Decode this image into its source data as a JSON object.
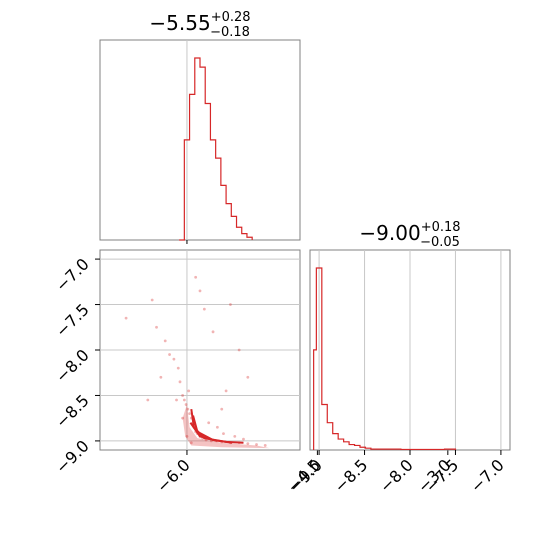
{
  "chart_data": {
    "type": "corner",
    "color": "#d62728",
    "axis_color": "#808080",
    "grid_color": "#c8c8c8",
    "grid": true,
    "params": [
      {
        "title": {
          "main": "−5.55",
          "sup": "+0.28",
          "sub": "−0.18"
        },
        "range": [
          -7.0,
          -4.7
        ],
        "ticks": [
          -6.0,
          -4.5,
          -3.0
        ],
        "tick_labels": [
          "−6.0",
          "−4.5",
          "−3.0"
        ]
      },
      {
        "title": {
          "main": "−9.00",
          "sup": "+0.18",
          "sub": "−0.05"
        },
        "range": [
          -9.1,
          -6.9
        ],
        "ticks": [
          -9.0,
          -8.5,
          -8.0,
          -7.5,
          -7.0
        ],
        "tick_labels": [
          "−9.0",
          "−8.5",
          "−8.0",
          "−7.5",
          "−7.0"
        ]
      }
    ],
    "panels": [
      {
        "name": "hist-param1",
        "type": "step-histogram",
        "bins": [
          {
            "x": -6.09,
            "y": 0.0
          },
          {
            "x": -6.03,
            "y": 0.55
          },
          {
            "x": -5.97,
            "y": 0.8
          },
          {
            "x": -5.91,
            "y": 1.0
          },
          {
            "x": -5.85,
            "y": 0.95
          },
          {
            "x": -5.79,
            "y": 0.75
          },
          {
            "x": -5.73,
            "y": 0.55
          },
          {
            "x": -5.67,
            "y": 0.45
          },
          {
            "x": -5.61,
            "y": 0.3
          },
          {
            "x": -5.55,
            "y": 0.2
          },
          {
            "x": -5.49,
            "y": 0.13
          },
          {
            "x": -5.43,
            "y": 0.07
          },
          {
            "x": -5.37,
            "y": 0.035
          },
          {
            "x": -5.31,
            "y": 0.015
          },
          {
            "x": -5.25,
            "y": 0.0
          }
        ]
      },
      {
        "name": "hist-param2",
        "type": "step-histogram",
        "bins": [
          {
            "x": -9.06,
            "y": 0.55
          },
          {
            "x": -9.03,
            "y": 1.0
          },
          {
            "x": -8.97,
            "y": 0.25
          },
          {
            "x": -8.91,
            "y": 0.15
          },
          {
            "x": -8.85,
            "y": 0.09
          },
          {
            "x": -8.79,
            "y": 0.06
          },
          {
            "x": -8.73,
            "y": 0.045
          },
          {
            "x": -8.67,
            "y": 0.03
          },
          {
            "x": -8.61,
            "y": 0.025
          },
          {
            "x": -8.55,
            "y": 0.015
          },
          {
            "x": -8.49,
            "y": 0.01
          },
          {
            "x": -8.43,
            "y": 0.005
          },
          {
            "x": -8.25,
            "y": 0.005
          },
          {
            "x": -8.1,
            "y": 0.003
          },
          {
            "x": -7.62,
            "y": 0.005
          },
          {
            "x": -7.5,
            "y": 0.0
          }
        ]
      },
      {
        "name": "scatter-param1-param2",
        "type": "scatter-contour",
        "points": [
          [
            -6.7,
            -7.65
          ],
          [
            -6.4,
            -7.45
          ],
          [
            -6.35,
            -7.75
          ],
          [
            -6.25,
            -7.9
          ],
          [
            -6.2,
            -8.05
          ],
          [
            -6.15,
            -8.1
          ],
          [
            -6.1,
            -8.2
          ],
          [
            -6.08,
            -8.35
          ],
          [
            -6.05,
            -8.5
          ],
          [
            -6.03,
            -8.55
          ],
          [
            -6.01,
            -8.6
          ],
          [
            -5.99,
            -8.65
          ],
          [
            -5.97,
            -8.7
          ],
          [
            -5.95,
            -8.75
          ],
          [
            -5.93,
            -8.8
          ],
          [
            -5.92,
            -8.85
          ],
          [
            -5.9,
            -8.9
          ],
          [
            -5.88,
            -8.92
          ],
          [
            -5.85,
            -8.95
          ],
          [
            -5.82,
            -8.97
          ],
          [
            -5.78,
            -8.99
          ],
          [
            -5.72,
            -9.0
          ],
          [
            -5.66,
            -9.0
          ],
          [
            -5.6,
            -9.01
          ],
          [
            -5.5,
            -9.02
          ],
          [
            -5.4,
            -9.02
          ],
          [
            -5.3,
            -9.03
          ],
          [
            -5.2,
            -9.04
          ],
          [
            -5.1,
            -9.05
          ],
          [
            -5.85,
            -7.35
          ],
          [
            -5.8,
            -7.55
          ],
          [
            -5.7,
            -7.8
          ],
          [
            -5.5,
            -7.5
          ],
          [
            -5.4,
            -8.0
          ],
          [
            -5.3,
            -8.3
          ],
          [
            -5.9,
            -7.2
          ],
          [
            -6.3,
            -8.3
          ],
          [
            -6.45,
            -8.55
          ],
          [
            -5.6,
            -8.65
          ],
          [
            -5.55,
            -8.45
          ],
          [
            -6.0,
            -8.95
          ],
          [
            -5.95,
            -9.02
          ],
          [
            -5.75,
            -8.8
          ],
          [
            -5.65,
            -8.85
          ],
          [
            -5.58,
            -8.92
          ],
          [
            -5.45,
            -8.95
          ],
          [
            -5.35,
            -8.98
          ],
          [
            -6.05,
            -8.75
          ],
          [
            -5.98,
            -8.45
          ],
          [
            -6.12,
            -8.55
          ]
        ],
        "contours": [
          [
            [
              -5.95,
              -8.65
            ],
            [
              -5.92,
              -8.85
            ],
            [
              -5.8,
              -8.97
            ],
            [
              -5.55,
              -9.01
            ],
            [
              -5.35,
              -9.02
            ]
          ],
          [
            [
              -5.93,
              -8.72
            ],
            [
              -5.88,
              -8.9
            ],
            [
              -5.7,
              -8.99
            ],
            [
              -5.48,
              -9.02
            ]
          ],
          [
            [
              -5.96,
              -8.8
            ],
            [
              -5.85,
              -8.95
            ],
            [
              -5.65,
              -9.0
            ]
          ]
        ]
      }
    ]
  }
}
